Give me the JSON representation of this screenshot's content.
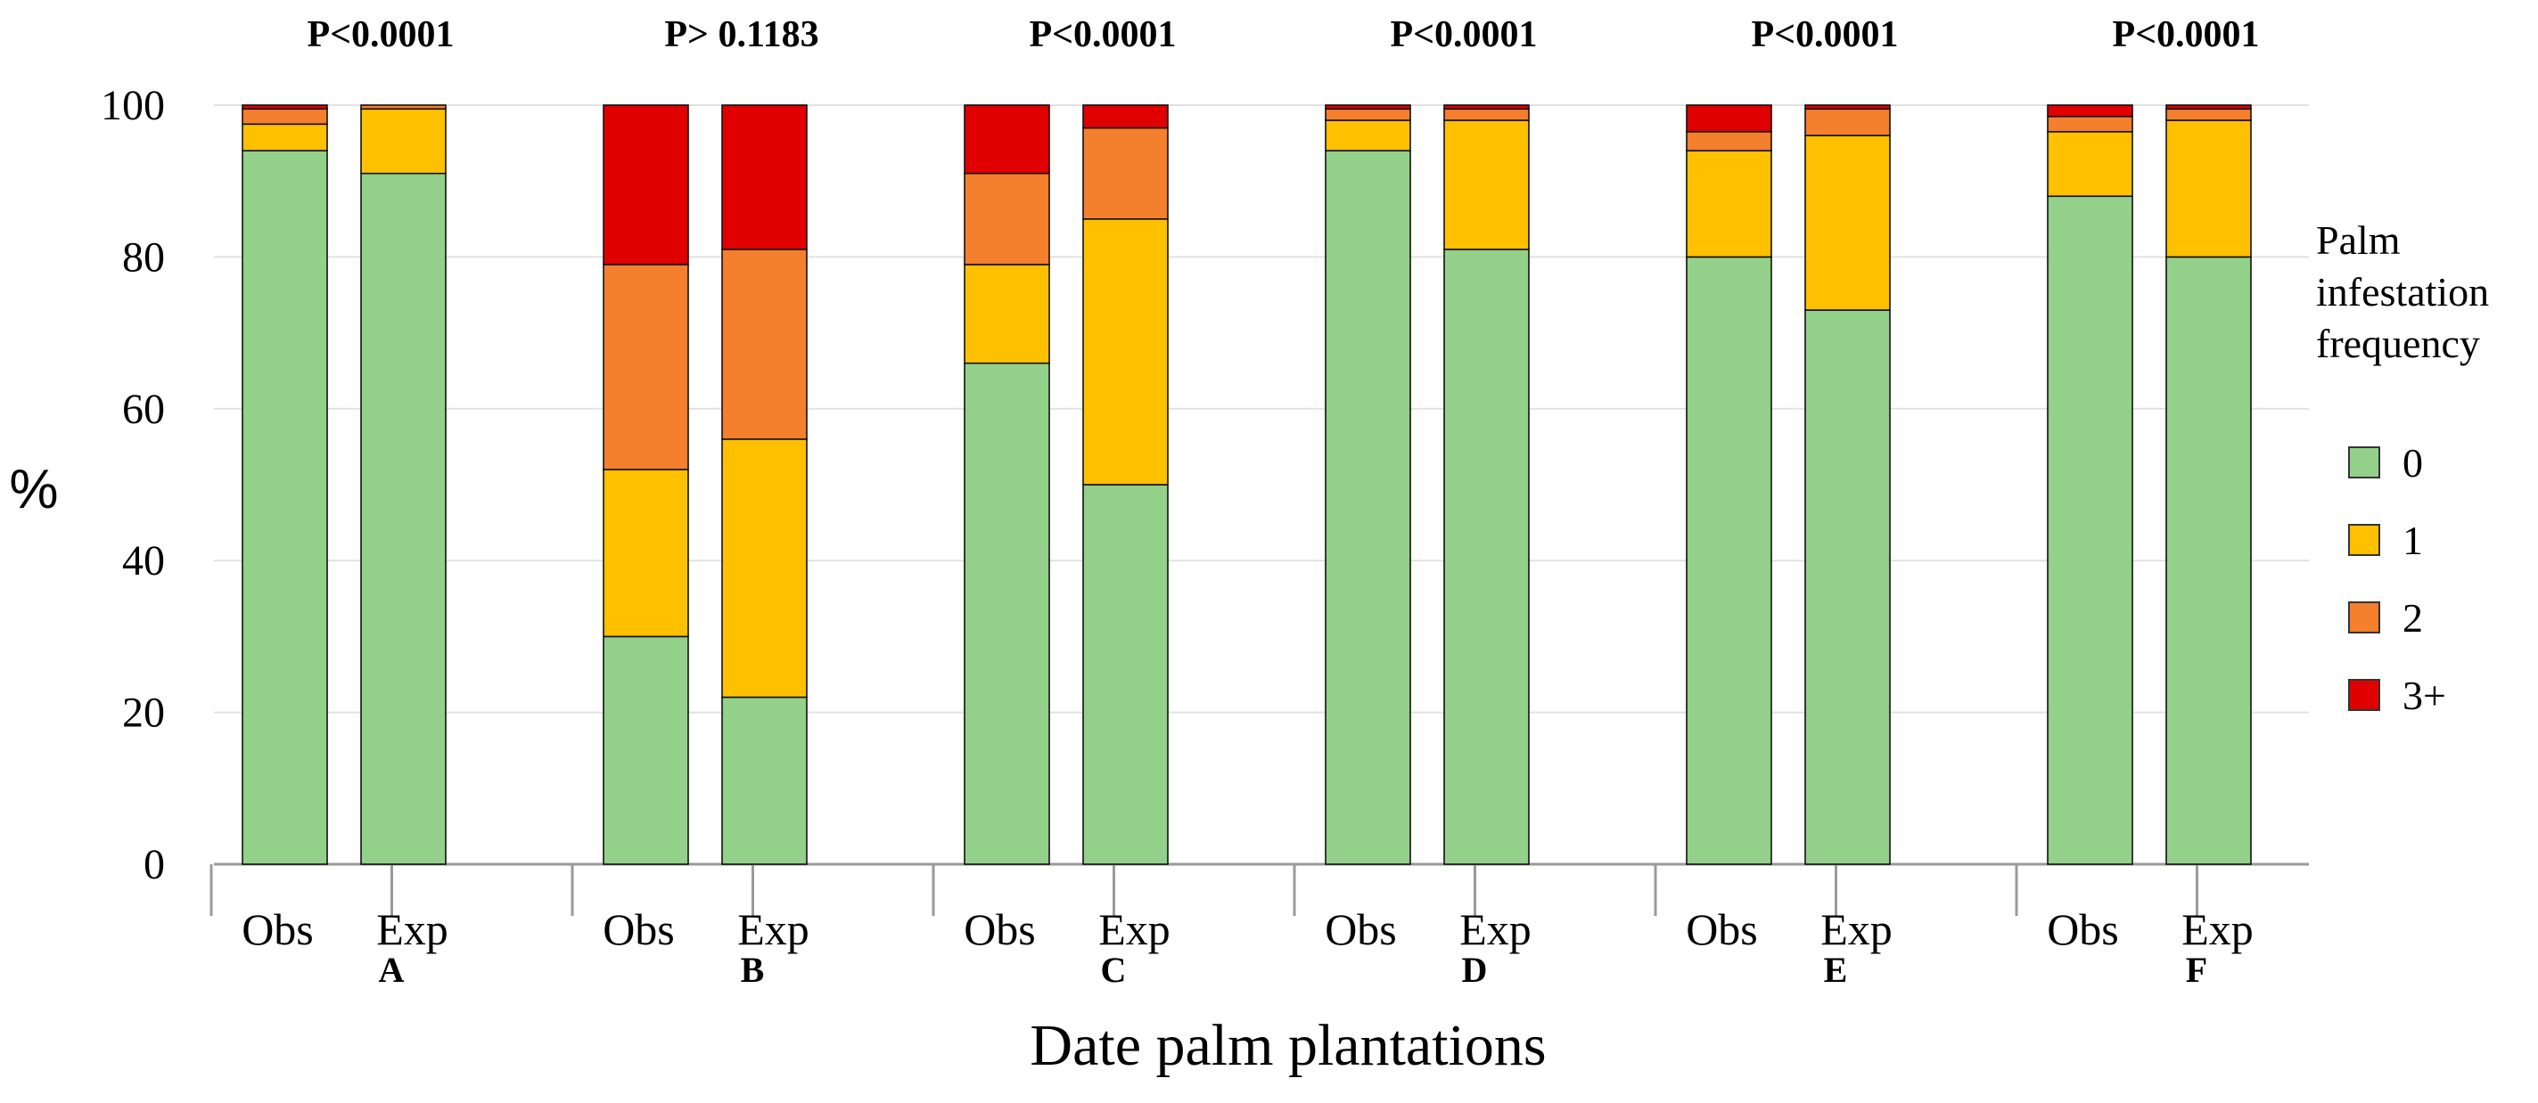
{
  "chart_data": {
    "type": "bar",
    "stacked": true,
    "title": "",
    "xlabel": "Date palm plantations",
    "ylabel": "%",
    "ylim": [
      0,
      100
    ],
    "yticks": [
      "0",
      "20",
      "40",
      "60",
      "80",
      "100"
    ],
    "grid": true,
    "legend": {
      "title": [
        "Palm",
        "infestation",
        "frequency"
      ],
      "placement": "right",
      "entries": [
        "0",
        "1",
        "2",
        "3+"
      ]
    },
    "colors": {
      "0": "#93d08a",
      "1": "#ffc000",
      "2": "#f47f2c",
      "3+": "#e00000"
    },
    "groups": [
      {
        "name": "A",
        "pvalue": "P<0.0001",
        "bars": [
          {
            "label": "Obs",
            "values": [
              94,
              3.5,
              2,
              0.5
            ]
          },
          {
            "label": "Exp",
            "values": [
              91,
              8.5,
              0.5,
              0
            ]
          }
        ]
      },
      {
        "name": "B",
        "pvalue": "P> 0.1183",
        "bars": [
          {
            "label": "Obs",
            "values": [
              30,
              22,
              27,
              21
            ]
          },
          {
            "label": "Exp",
            "values": [
              22,
              34,
              25,
              19
            ]
          }
        ]
      },
      {
        "name": "C",
        "pvalue": "P<0.0001",
        "bars": [
          {
            "label": "Obs",
            "values": [
              66,
              13,
              12,
              9
            ]
          },
          {
            "label": "Exp",
            "values": [
              50,
              35,
              12,
              3
            ]
          }
        ]
      },
      {
        "name": "D",
        "pvalue": "P<0.0001",
        "bars": [
          {
            "label": "Obs",
            "values": [
              94,
              4,
              1.5,
              0.5
            ]
          },
          {
            "label": "Exp",
            "values": [
              81,
              17,
              1.5,
              0.5
            ]
          }
        ]
      },
      {
        "name": "E",
        "pvalue": "P<0.0001",
        "bars": [
          {
            "label": "Obs",
            "values": [
              80,
              14,
              2.5,
              3.5
            ]
          },
          {
            "label": "Exp",
            "values": [
              73,
              23,
              3.5,
              0.5
            ]
          }
        ]
      },
      {
        "name": "F",
        "pvalue": "P<0.0001",
        "bars": [
          {
            "label": "Obs",
            "values": [
              88,
              8.5,
              2,
              1.5
            ]
          },
          {
            "label": "Exp",
            "values": [
              80,
              18,
              1.5,
              0.5
            ]
          }
        ]
      }
    ]
  }
}
